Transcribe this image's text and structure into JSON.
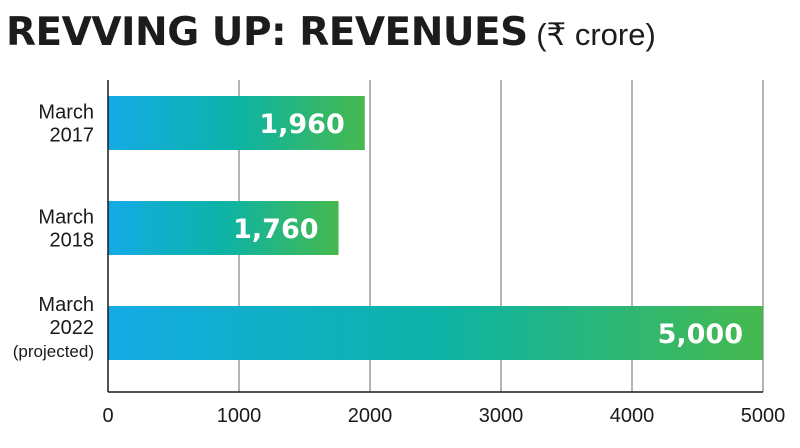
{
  "title": {
    "main": "REVVING UP: REVENUES",
    "unit": "(₹ crore)"
  },
  "colors": {
    "bar_start": "#14abe6",
    "bar_mid": "#0cb3a6",
    "bar_end": "#46b94e",
    "gridline": "#8c8c8c",
    "axis": "#1a1a1a"
  },
  "chart_data": {
    "type": "bar",
    "orientation": "horizontal",
    "title": "REVVING UP: REVENUES (₹ crore)",
    "categories": [
      {
        "lines": [
          "March",
          "2017"
        ]
      },
      {
        "lines": [
          "March",
          "2018"
        ]
      },
      {
        "lines": [
          "March",
          "2022",
          "(projected)"
        ]
      }
    ],
    "values": [
      1960,
      1760,
      5000
    ],
    "value_labels": [
      "1,960",
      "1,760",
      "5,000"
    ],
    "xlim": [
      0,
      5000
    ],
    "xticks": [
      0,
      1000,
      2000,
      3000,
      4000,
      5000
    ],
    "xtick_labels": [
      "0",
      "1000",
      "2000",
      "3000",
      "4000",
      "5000"
    ],
    "grid": true,
    "xlabel": "",
    "ylabel": ""
  }
}
